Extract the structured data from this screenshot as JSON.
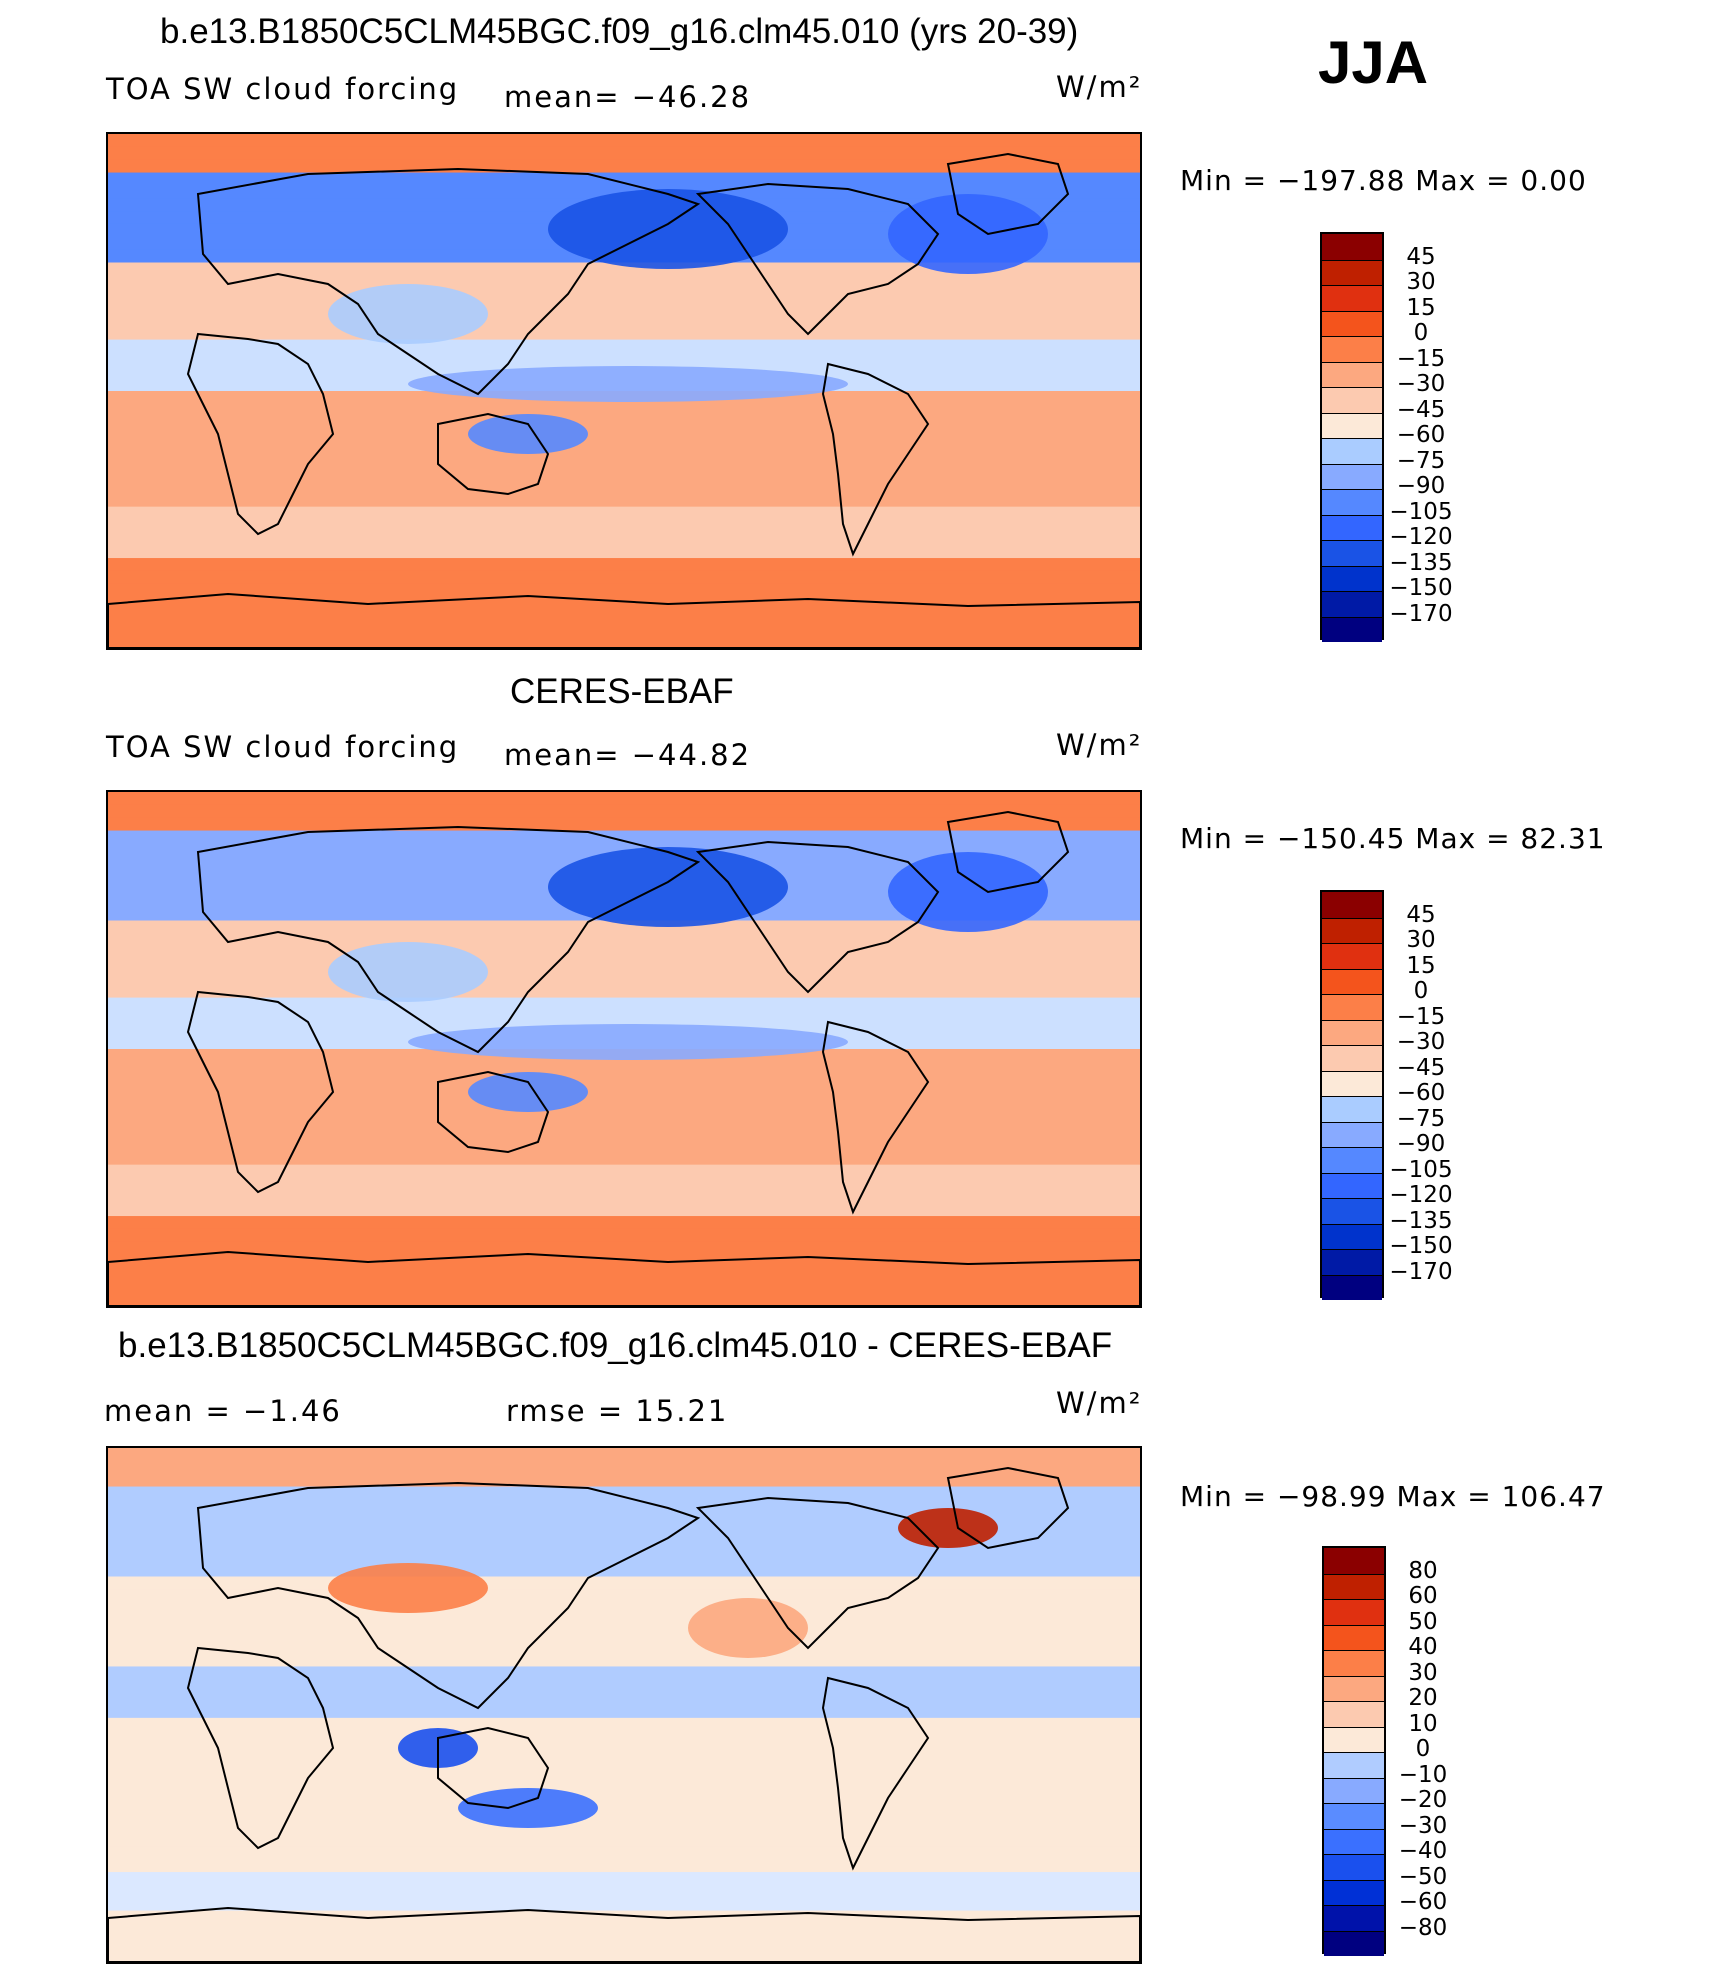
{
  "season": "JJA",
  "colors": {
    "abs_scale": [
      "#000080",
      "#001aa6",
      "#0033cc",
      "#1a53e6",
      "#3366ff",
      "#5588ff",
      "#88aaff",
      "#aaccff",
      "#cce0ff",
      "#fce9d8",
      "#fccab0",
      "#fca880",
      "#fc7f48",
      "#f4541c",
      "#e03010",
      "#bf2000",
      "#8b0000"
    ],
    "diff_scale": [
      "#000080",
      "#0012aa",
      "#0030d6",
      "#1a50ee",
      "#3a70ff",
      "#5a8cff",
      "#88aaff",
      "#b0ccff",
      "#dbe8ff",
      "#fce9d8",
      "#fccab0",
      "#fca880",
      "#fc7f48",
      "#f4541c",
      "#e03010",
      "#bf2000",
      "#8b0000"
    ],
    "land_line": "#000000"
  },
  "panels": [
    {
      "title": "b.e13.B1850C5CLM45BGC.f09_g16.clm45.010 (yrs 20-39)",
      "left_label": "TOA SW cloud forcing",
      "center_label": "mean= −46.28",
      "units": "W/m²",
      "minmax": "Min = −197.88 Max =   0.00"
    },
    {
      "title": "CERES-EBAF",
      "left_label": "TOA SW cloud forcing",
      "center_label": "mean= −44.82",
      "units": "W/m²",
      "minmax": "Min = −150.45 Max =  82.31"
    },
    {
      "title": "b.e13.B1850C5CLM45BGC.f09_g16.clm45.010 - CERES-EBAF",
      "left_label": "mean =   −1.46",
      "center_label": "rmse =   15.21",
      "units": "W/m²",
      "minmax": "Min = −98.99 Max = 106.47"
    }
  ],
  "chart_data": [
    {
      "type": "heatmap",
      "title": "b.e13.B1850C5CLM45BGC.f09_g16.clm45.010 (yrs 20-39)",
      "variable": "TOA SW cloud forcing",
      "units": "W/m²",
      "mean": -46.28,
      "min": -197.88,
      "max": 0.0,
      "colorbar_levels": [
        "45",
        "30",
        "15",
        "0",
        "−15",
        "−30",
        "−45",
        "−60",
        "−75",
        "−90",
        "−105",
        "−120",
        "−135",
        "−150",
        "−170"
      ]
    },
    {
      "type": "heatmap",
      "title": "CERES-EBAF",
      "variable": "TOA SW cloud forcing",
      "units": "W/m²",
      "mean": -44.82,
      "min": -150.45,
      "max": 82.31,
      "colorbar_levels": [
        "45",
        "30",
        "15",
        "0",
        "−15",
        "−30",
        "−45",
        "−60",
        "−75",
        "−90",
        "−105",
        "−120",
        "−135",
        "−150",
        "−170"
      ]
    },
    {
      "type": "heatmap",
      "title": "b.e13.B1850C5CLM45BGC.f09_g16.clm45.010 - CERES-EBAF",
      "units": "W/m²",
      "mean": -1.46,
      "rmse": 15.21,
      "min": -98.99,
      "max": 106.47,
      "colorbar_levels": [
        "80",
        "60",
        "50",
        "40",
        "30",
        "20",
        "10",
        "0",
        "−10",
        "−20",
        "−30",
        "−40",
        "−50",
        "−60",
        "−80"
      ]
    }
  ]
}
